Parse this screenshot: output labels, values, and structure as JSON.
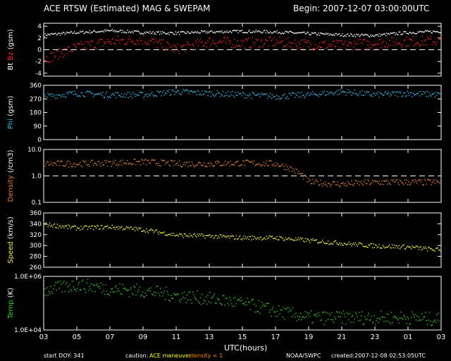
{
  "title": "ACE RTSW (Estimated) MAG & SWEPAM",
  "begin": "Begin: 2007-12-07 03:00:00UTC",
  "footer": {
    "start_doy": "start DOY: 341",
    "caution": "caution:",
    "ace_maneuver": "ACE maneuver",
    "density_note": "density < 1",
    "agency": "NOAA/SWPC",
    "created": "created:2007-12-08 02:53:05UTC"
  },
  "colors": {
    "bt": "#ffffff",
    "bz": "#ff2020",
    "phi": "#30b8e8",
    "density": "#e08030",
    "speed": "#f0f040",
    "temp": "#30d020",
    "axes": "#ffffff",
    "caution_maneuver": "#ffff00",
    "caution_density": "#ff8800"
  },
  "chart_data": {
    "type": "scatter",
    "x_label": "UTC(hours)",
    "x_ticks": [
      "03",
      "05",
      "07",
      "09",
      "11",
      "13",
      "15",
      "17",
      "19",
      "21",
      "23",
      "01",
      "03"
    ],
    "x_range_hours": [
      0,
      24
    ],
    "panels": [
      {
        "ylabel_parts": [
          "Bt",
          "Bz",
          "(gsm)"
        ],
        "ylim": [
          -4.5,
          4.5
        ],
        "ticks": [
          4,
          2,
          0,
          -2,
          -4
        ],
        "tick_labels": [
          "4",
          "2",
          "0",
          "-2",
          "-4"
        ],
        "dashed": 0,
        "series": [
          {
            "name": "Bt",
            "color_key": "bt",
            "mean": [
              2.6,
              3.0,
              3.3,
              3.0,
              2.9,
              3.1,
              3.2,
              3.1,
              2.8,
              2.6,
              2.5,
              3.0,
              3.2
            ],
            "noise": 0.25
          },
          {
            "name": "Bz",
            "color_key": "bz",
            "mean": [
              -1.5,
              0.5,
              1.5,
              1.8,
              0.2,
              1.5,
              1.2,
              1.4,
              1.0,
              0.8,
              1.2,
              1.5,
              1.6
            ],
            "noise": 0.9
          }
        ]
      },
      {
        "ylabel_parts": [
          "Phi",
          "(gsm)"
        ],
        "ylim": [
          0,
          360
        ],
        "ticks": [
          360,
          270,
          180,
          90,
          0
        ],
        "tick_labels": [
          "360",
          "270",
          "180",
          "90",
          "0"
        ],
        "series": [
          {
            "name": "Phi",
            "color_key": "phi",
            "mean": [
              290,
              310,
              300,
              300,
              320,
              310,
              300,
              290,
              300,
              320,
              300,
              310,
              300
            ],
            "noise": 20
          }
        ]
      },
      {
        "ylabel_parts": [
          "Density",
          "(/cm3)"
        ],
        "log": true,
        "ylim": [
          0.1,
          10
        ],
        "ticks": [
          10,
          1,
          0.1
        ],
        "tick_labels": [
          "10.0",
          "1.0",
          "0.1"
        ],
        "dashed": 1,
        "series": [
          {
            "name": "Density",
            "color_key": "density",
            "mean": [
              3.0,
              3.0,
              3.2,
              3.5,
              3.0,
              3.0,
              3.2,
              3.0,
              0.6,
              0.5,
              0.6,
              0.6,
              0.6
            ],
            "noise": 0.12
          }
        ]
      },
      {
        "ylabel_parts": [
          "Speed",
          "(km/s)"
        ],
        "ylim": [
          260,
          360
        ],
        "ticks": [
          360,
          340,
          320,
          300,
          280,
          260
        ],
        "tick_labels": [
          "360",
          "340",
          "320",
          "300",
          "280",
          "260"
        ],
        "series": [
          {
            "name": "Speed",
            "color_key": "speed",
            "mean": [
              340,
              333,
              335,
              330,
              320,
              318,
              315,
              315,
              310,
              305,
              300,
              298,
              292
            ],
            "noise": 4
          }
        ]
      },
      {
        "ylabel_parts": [
          "Temp",
          "(K)"
        ],
        "log": true,
        "ylim": [
          10000,
          1000000
        ],
        "ticks": [
          1000000,
          10000
        ],
        "tick_labels": [
          "1.0E+06",
          "1.0E+04"
        ],
        "series": [
          {
            "name": "Temp",
            "color_key": "temp",
            "mean": [
              300000,
              500000,
              350000,
              300000,
              200000,
              150000,
              100000,
              50000,
              30000,
              30000,
              30000,
              30000,
              25000
            ],
            "noise": 0.25
          }
        ]
      }
    ]
  }
}
